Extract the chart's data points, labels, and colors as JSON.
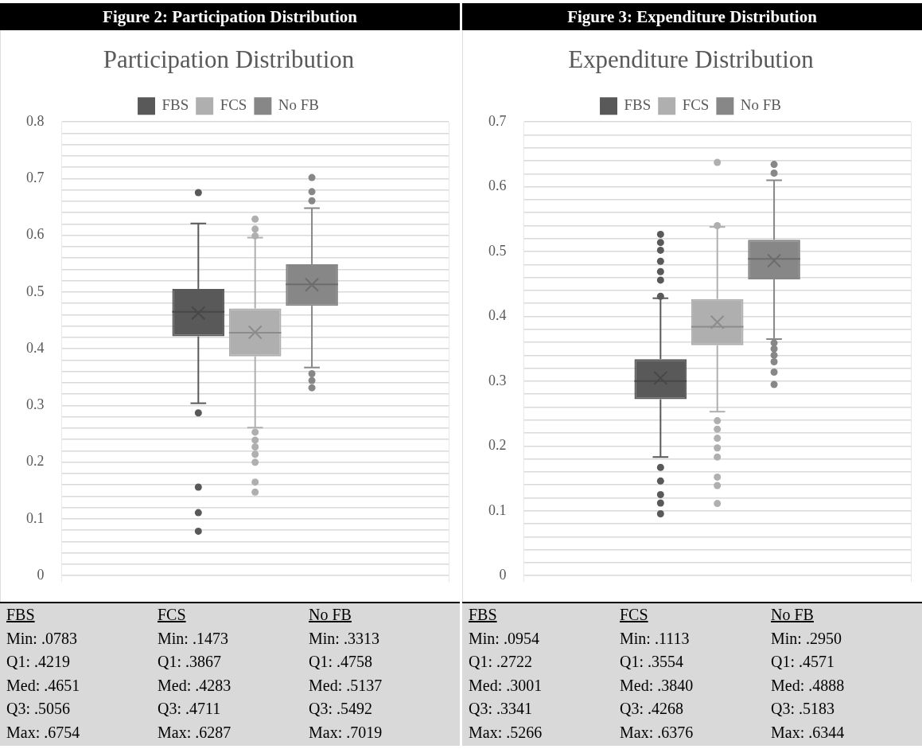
{
  "chart_data": [
    {
      "type": "box",
      "title": "Participation Distribution",
      "categories": [
        null
      ],
      "legend": "top",
      "grid": true,
      "tick_labels": "y",
      "ylim": [
        0,
        0.8
      ],
      "yticks": [
        0,
        {
          "value": 0.02,
          "label": null
        },
        {
          "value": 0.04,
          "label": null
        },
        {
          "value": 0.06,
          "label": null
        },
        {
          "value": 0.08,
          "label": null
        },
        0.1,
        {
          "value": 0.12,
          "label": null
        },
        {
          "value": 0.14,
          "label": null
        },
        {
          "value": 0.16,
          "label": null
        },
        {
          "value": 0.18,
          "label": null
        },
        0.2,
        {
          "value": 0.22,
          "label": null
        },
        {
          "value": 0.24,
          "label": null
        },
        {
          "value": 0.26,
          "label": null
        },
        {
          "value": 0.28,
          "label": null
        },
        0.3,
        {
          "value": 0.32,
          "label": null
        },
        {
          "value": 0.34,
          "label": null
        },
        {
          "value": 0.36,
          "label": null
        },
        {
          "value": 0.38,
          "label": null
        },
        0.4,
        {
          "value": 0.42,
          "label": null
        },
        {
          "value": 0.44,
          "label": null
        },
        {
          "value": 0.46,
          "label": null
        },
        {
          "value": 0.48,
          "label": null
        },
        0.5,
        {
          "value": 0.52,
          "label": null
        },
        {
          "value": 0.54,
          "label": null
        },
        {
          "value": 0.56,
          "label": null
        },
        {
          "value": 0.58,
          "label": null
        },
        0.6,
        {
          "value": 0.62,
          "label": null
        },
        {
          "value": 0.64,
          "label": null
        },
        {
          "value": 0.66,
          "label": null
        },
        {
          "value": 0.68,
          "label": null
        },
        0.7,
        {
          "value": 0.72,
          "label": null
        },
        {
          "value": 0.74,
          "label": null
        },
        {
          "value": 0.76,
          "label": null
        },
        {
          "value": 0.78,
          "label": null
        },
        0.8
      ],
      "series": [
        {
          "name": "FBS",
          "color": "#595959",
          "boxes": [
            {
              "low": 0.304,
              "q1": 0.4219,
              "median": 0.4651,
              "q3": 0.5056,
              "high": 0.621,
              "mean": 0.463,
              "outliers": [
                0.6754,
                0.287,
                0.156,
                0.111,
                0.0783
              ]
            }
          ]
        },
        {
          "name": "FCS",
          "color": "#afafaf",
          "boxes": [
            {
              "low": 0.261,
              "q1": 0.3867,
              "median": 0.4283,
              "q3": 0.4711,
              "high": 0.596,
              "mean": 0.429,
              "outliers": [
                0.6287,
                0.611,
                0.599,
                0.253,
                0.239,
                0.227,
                0.214,
                0.2,
                0.165,
                0.1473
              ]
            }
          ]
        },
        {
          "name": "No FB",
          "color": "#878787",
          "boxes": [
            {
              "low": 0.367,
              "q1": 0.4758,
              "median": 0.5137,
              "q3": 0.5492,
              "high": 0.648,
              "mean": 0.513,
              "outliers": [
                0.7019,
                0.677,
                0.661,
                0.356,
                0.344,
                0.3313
              ]
            }
          ]
        }
      ],
      "annotations": [
        "Figure 2: Participation Distribution",
        "FBS",
        "Min: .0783",
        "Q1: .4219",
        "Med: .4651",
        "Q3: .5056",
        "Max: .6754",
        "FCS",
        "Min: .1473",
        "Q1: .3867",
        "Med: .4283",
        "Q3: .4711",
        "Max: .6287",
        "No FB",
        "Min: .3313",
        "Q1: .4758",
        "Med: .5137",
        "Q3: .5492",
        "Max: .7019"
      ]
    },
    {
      "type": "box",
      "title": "Expenditure Distribution",
      "categories": [
        null
      ],
      "legend": "top",
      "grid": true,
      "tick_labels": "y",
      "ylim": [
        0,
        0.7
      ],
      "yticks": [
        0,
        {
          "value": 0.02,
          "label": null
        },
        {
          "value": 0.04,
          "label": null
        },
        {
          "value": 0.06,
          "label": null
        },
        {
          "value": 0.08,
          "label": null
        },
        0.1,
        {
          "value": 0.12,
          "label": null
        },
        {
          "value": 0.14,
          "label": null
        },
        {
          "value": 0.16,
          "label": null
        },
        {
          "value": 0.18,
          "label": null
        },
        0.2,
        {
          "value": 0.22,
          "label": null
        },
        {
          "value": 0.24,
          "label": null
        },
        {
          "value": 0.26,
          "label": null
        },
        {
          "value": 0.28,
          "label": null
        },
        0.3,
        {
          "value": 0.32,
          "label": null
        },
        {
          "value": 0.34,
          "label": null
        },
        {
          "value": 0.36,
          "label": null
        },
        {
          "value": 0.38,
          "label": null
        },
        0.4,
        {
          "value": 0.42,
          "label": null
        },
        {
          "value": 0.44,
          "label": null
        },
        {
          "value": 0.46,
          "label": null
        },
        {
          "value": 0.48,
          "label": null
        },
        0.5,
        {
          "value": 0.52,
          "label": null
        },
        {
          "value": 0.54,
          "label": null
        },
        {
          "value": 0.56,
          "label": null
        },
        {
          "value": 0.58,
          "label": null
        },
        0.6,
        {
          "value": 0.62,
          "label": null
        },
        {
          "value": 0.64,
          "label": null
        },
        {
          "value": 0.66,
          "label": null
        },
        {
          "value": 0.68,
          "label": null
        },
        0.7
      ],
      "series": [
        {
          "name": "FBS",
          "color": "#595959",
          "boxes": [
            {
              "low": 0.183,
              "q1": 0.2722,
              "median": 0.3001,
              "q3": 0.3341,
              "high": 0.428,
              "mean": 0.305,
              "outliers": [
                0.5266,
                0.514,
                0.502,
                0.485,
                0.469,
                0.456,
                0.431,
                0.167,
                0.146,
                0.125,
                0.112,
                0.0954
              ]
            }
          ]
        },
        {
          "name": "FCS",
          "color": "#afafaf",
          "boxes": [
            {
              "low": 0.253,
              "q1": 0.3554,
              "median": 0.384,
              "q3": 0.4268,
              "high": 0.538,
              "mean": 0.391,
              "outliers": [
                0.6376,
                0.54,
                0.239,
                0.226,
                0.212,
                0.197,
                0.183,
                0.152,
                0.139,
                0.1113
              ]
            }
          ]
        },
        {
          "name": "No FB",
          "color": "#878787",
          "boxes": [
            {
              "low": 0.365,
              "q1": 0.4571,
              "median": 0.4888,
              "q3": 0.5183,
              "high": 0.61,
              "mean": 0.486,
              "outliers": [
                0.6344,
                0.621,
                0.359,
                0.35,
                0.34,
                0.33,
                0.314,
                0.295
              ]
            }
          ]
        }
      ],
      "annotations": [
        "Figure 3: Expenditure Distribution",
        "FBS",
        "Min: .0954",
        "Q1: .2722",
        "Med: .3001",
        "Q3: .3341",
        "Max: .5266",
        "FCS",
        "Min: .1113",
        "Q1: .3554",
        "Med: .3840",
        "Q3: .4268",
        "Max: .6376",
        "No FB",
        "Min: .2950",
        "Q1: .4571",
        "Med: .4888",
        "Q3: .5183",
        "Max: .6344"
      ]
    }
  ]
}
